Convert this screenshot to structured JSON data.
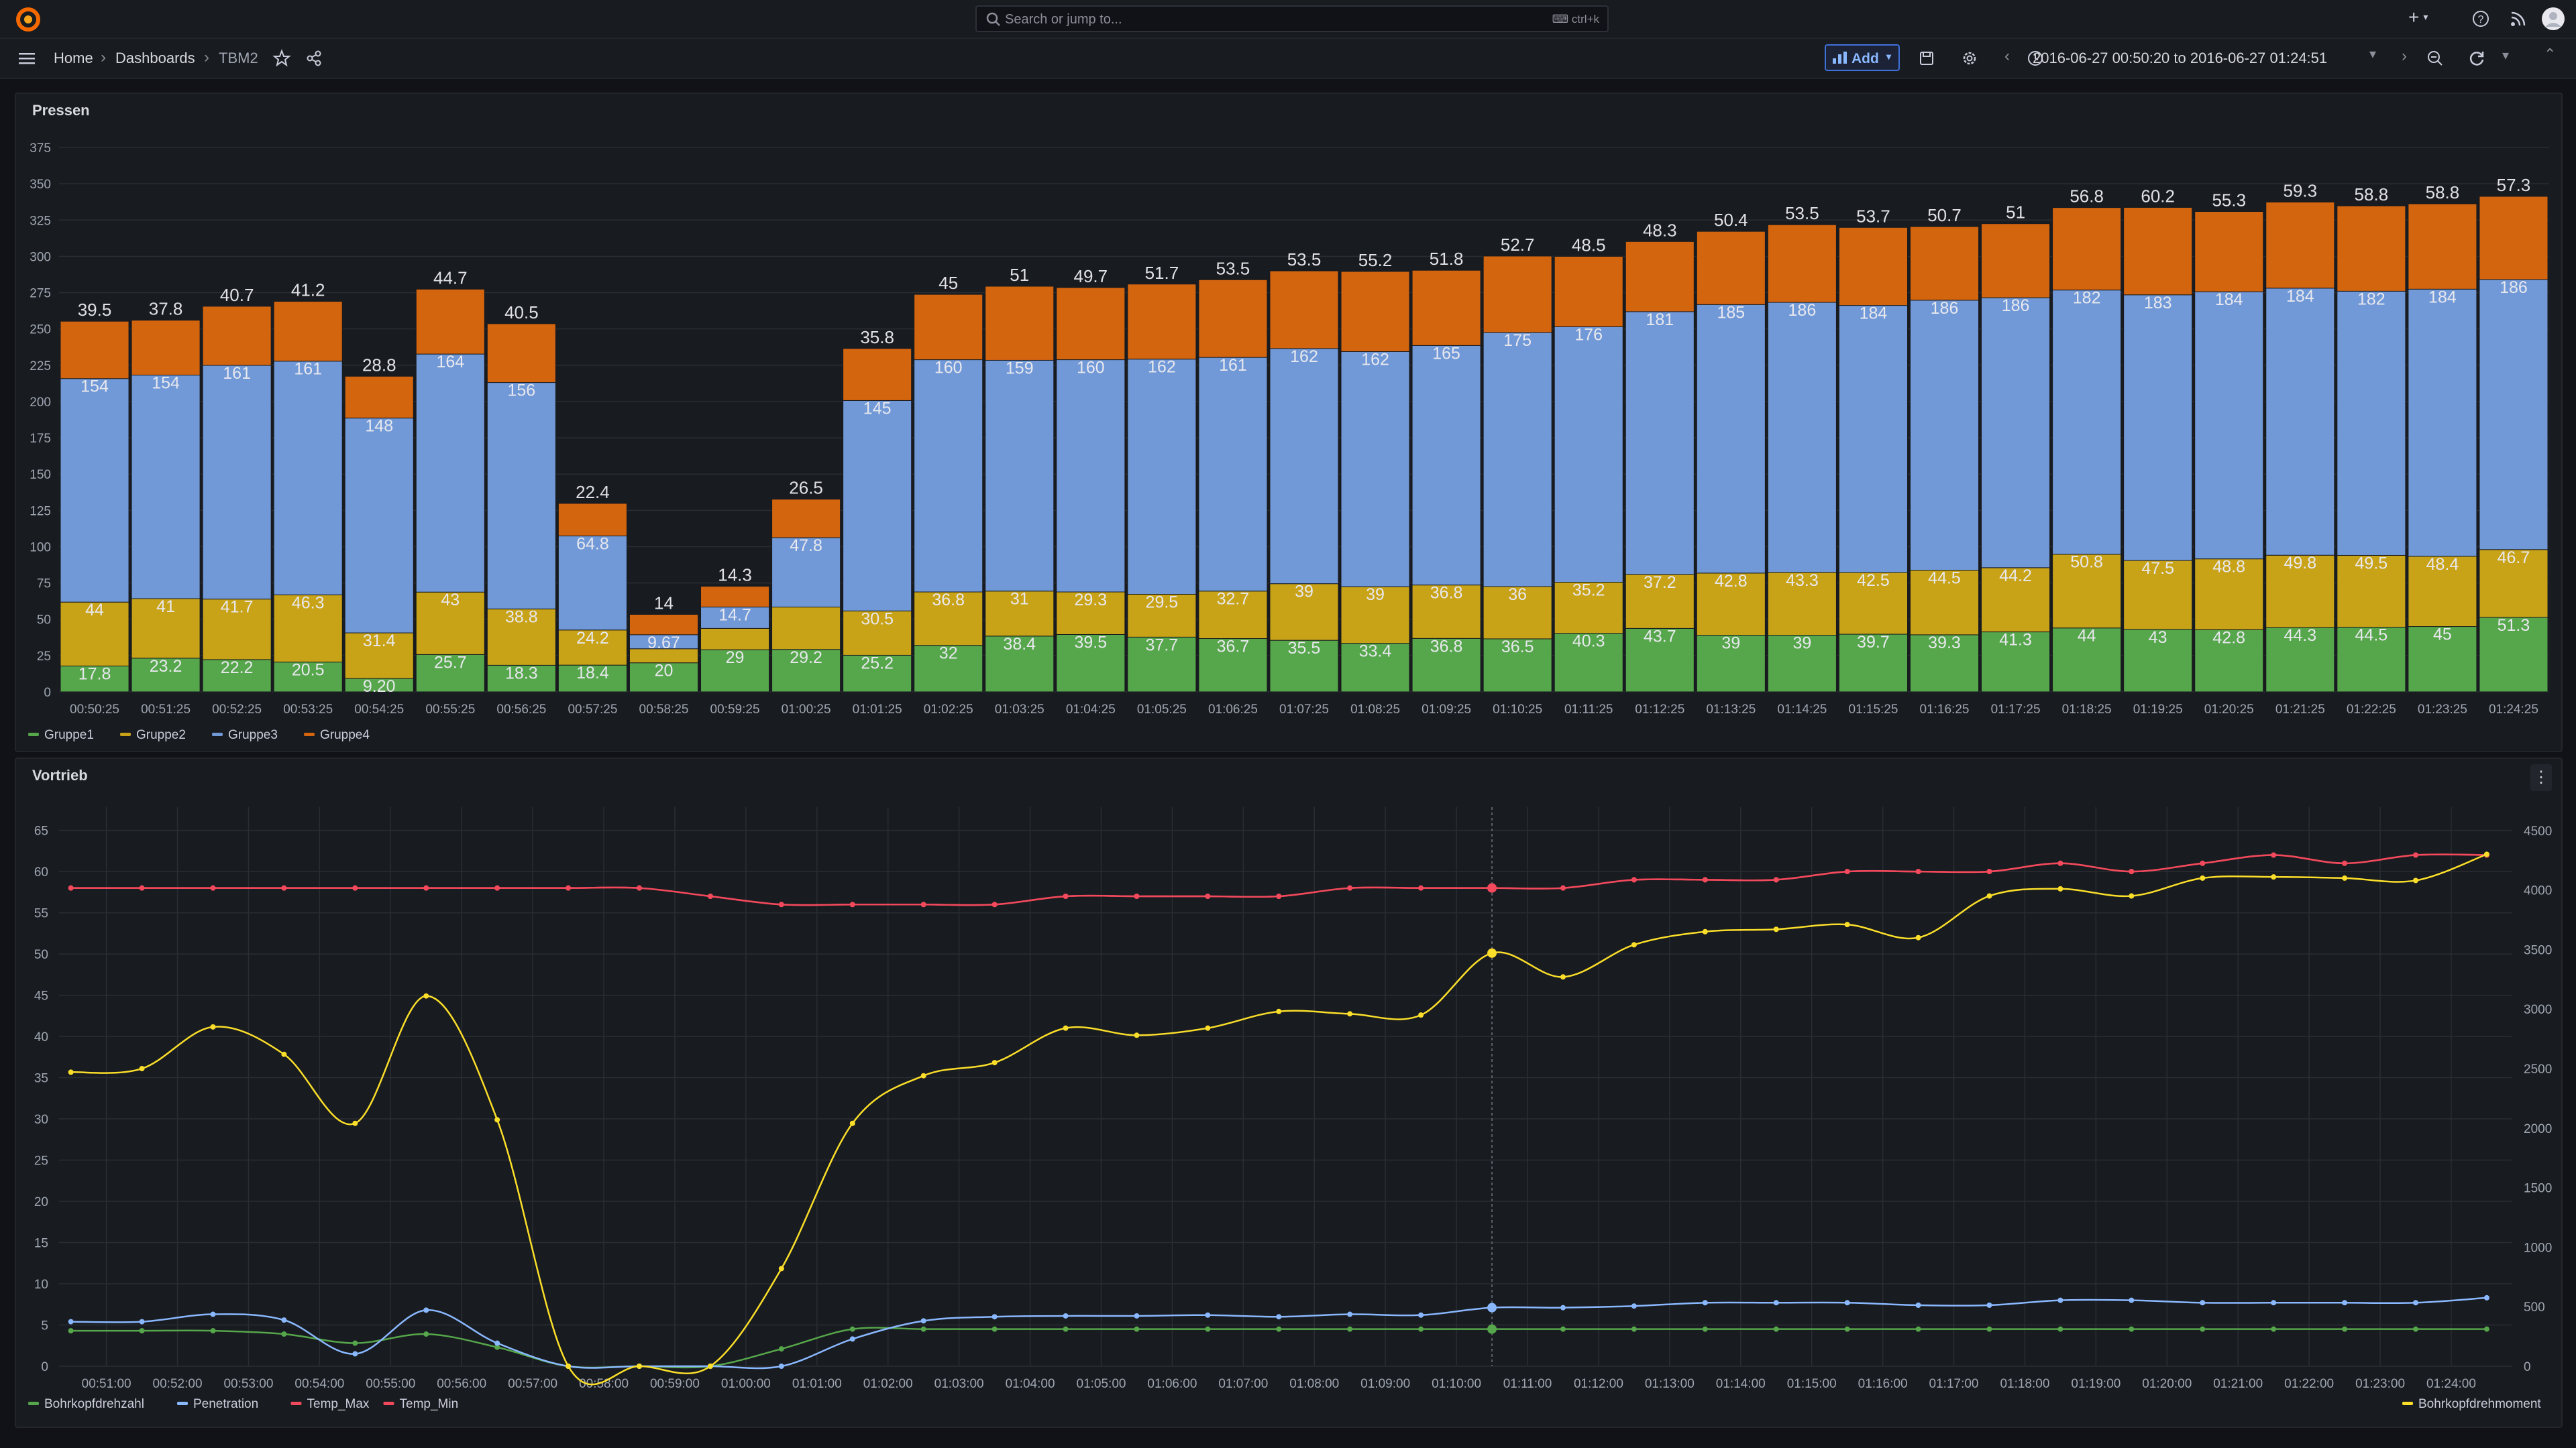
{
  "topbar": {
    "search_placeholder": "Search or jump to...",
    "search_shortcut": "ctrl+k",
    "new_label": "+"
  },
  "nav": {
    "breadcrumb": [
      "Home",
      "Dashboards",
      "TBM2"
    ],
    "add_label": "Add",
    "time_range": "2016-06-27 00:50:20 to 2016-06-27 01:24:51"
  },
  "colors": {
    "gruppe1": "#56a64b",
    "gruppe2": "#c9a317",
    "gruppe3": "#7199d7",
    "gruppe4": "#d4650f",
    "bohrkopfdrehzahl": "#56a64b",
    "penetration": "#8ab8ff",
    "temp_max": "#f2495c",
    "temp_min": "#f2495c",
    "bohrkopfdrehmoment": "#fade2a"
  },
  "panels": {
    "pressen_title": "Pressen",
    "vortrieb_title": "Vortrieb"
  },
  "chart_data": [
    {
      "type": "bar",
      "stacked": true,
      "title": "Pressen",
      "categories": [
        "00:50:25",
        "00:51:25",
        "00:52:25",
        "00:53:25",
        "00:54:25",
        "00:55:25",
        "00:56:25",
        "00:57:25",
        "00:58:25",
        "00:59:25",
        "01:00:25",
        "01:01:25",
        "01:02:25",
        "01:03:25",
        "01:04:25",
        "01:05:25",
        "01:06:25",
        "01:07:25",
        "01:08:25",
        "01:09:25",
        "01:10:25",
        "01:11:25",
        "01:12:25",
        "01:13:25",
        "01:14:25",
        "01:15:25",
        "01:16:25",
        "01:17:25",
        "01:18:25",
        "01:19:25",
        "01:20:25",
        "01:21:25",
        "01:22:25",
        "01:23:25",
        "01:24:25"
      ],
      "series": [
        {
          "name": "Gruppe1",
          "values": [
            17.8,
            23.2,
            22.2,
            20.5,
            9.2,
            25.7,
            18.3,
            18.4,
            20,
            29,
            29.2,
            25.2,
            32,
            38.4,
            39.5,
            37.7,
            36.7,
            35.5,
            33.4,
            36.8,
            36.5,
            40.3,
            43.7,
            39,
            39,
            39.7,
            39.3,
            41.3,
            44,
            43,
            42.8,
            44.3,
            44.5,
            45,
            51.3
          ],
          "labels": [
            "17.8",
            "23.2",
            "22.2",
            "20.5",
            "9.20",
            "25.7",
            "18.3",
            "18.4",
            "20",
            "29",
            "29.2",
            "25.2",
            "32",
            "38.4",
            "39.5",
            "37.7",
            "36.7",
            "35.5",
            "33.4",
            "36.8",
            "36.5",
            "40.3",
            "43.7",
            "39",
            "39",
            "39.7",
            "39.3",
            "41.3",
            "44",
            "43",
            "42.8",
            "44.3",
            "44.5",
            "45",
            "51.3"
          ]
        },
        {
          "name": "Gruppe2",
          "values": [
            44,
            41,
            41.7,
            46.3,
            31.4,
            43,
            38.8,
            24.2,
            9.67,
            14.7,
            29.2,
            30.5,
            36.8,
            31,
            29.3,
            29.5,
            32.7,
            39,
            39,
            36.8,
            36,
            35.2,
            37.2,
            42.8,
            43.3,
            42.5,
            44.5,
            44.2,
            50.8,
            47.5,
            48.8,
            49.8,
            49.5,
            48.4,
            46.7
          ],
          "labels": [
            "44",
            "41",
            "41.7",
            "46.3",
            "31.4",
            "43",
            "38.8",
            "24.2",
            "",
            "",
            "",
            "30.5",
            "36.8",
            "31",
            "29.3",
            "29.5",
            "32.7",
            "39",
            "39",
            "36.8",
            "36",
            "35.2",
            "37.2",
            "42.8",
            "43.3",
            "42.5",
            "44.5",
            "44.2",
            "50.8",
            "47.5",
            "48.8",
            "49.8",
            "49.5",
            "48.4",
            "46.7"
          ]
        },
        {
          "name": "Gruppe3",
          "values": [
            154,
            154,
            161,
            161,
            148,
            164,
            156,
            64.8,
            9.67,
            14.7,
            47.8,
            145,
            160,
            159,
            160,
            162,
            161,
            162,
            162,
            165,
            175,
            176,
            181,
            185,
            186,
            184,
            186,
            186,
            182,
            183,
            184,
            184,
            182,
            184,
            186
          ],
          "labels": [
            "154",
            "154",
            "161",
            "161",
            "148",
            "164",
            "156",
            "64.8",
            "9.67",
            "14.7",
            "47.8",
            "145",
            "160",
            "159",
            "160",
            "162",
            "161",
            "162",
            "162",
            "165",
            "175",
            "176",
            "181",
            "185",
            "186",
            "184",
            "186",
            "186",
            "182",
            "183",
            "184",
            "184",
            "182",
            "184",
            "186"
          ]
        },
        {
          "name": "Gruppe4",
          "values": [
            39.5,
            37.8,
            40.7,
            41.2,
            28.8,
            44.7,
            40.5,
            22.4,
            14,
            14.3,
            26.5,
            35.8,
            45,
            51,
            49.7,
            51.7,
            53.5,
            53.5,
            55.2,
            51.8,
            52.7,
            48.5,
            48.3,
            50.4,
            53.5,
            53.7,
            50.7,
            51,
            56.8,
            60.2,
            55.3,
            59.3,
            58.8,
            58.8,
            57.3
          ],
          "labels": [
            "39.5",
            "37.8",
            "40.7",
            "41.2",
            "28.8",
            "44.7",
            "40.5",
            "22.4",
            "14",
            "14.3",
            "26.5",
            "35.8",
            "45",
            "51",
            "49.7",
            "51.7",
            "53.5",
            "53.5",
            "55.2",
            "51.8",
            "52.7",
            "48.5",
            "48.3",
            "50.4",
            "53.5",
            "53.7",
            "50.7",
            "51",
            "56.8",
            "60.2",
            "55.3",
            "59.3",
            "58.8",
            "58.8",
            "57.3"
          ]
        }
      ],
      "yticks": [
        0,
        25,
        50,
        75,
        100,
        125,
        150,
        175,
        200,
        225,
        250,
        275,
        300,
        325,
        350,
        375
      ],
      "ylim": [
        0,
        375
      ],
      "legend": [
        "Gruppe1",
        "Gruppe2",
        "Gruppe3",
        "Gruppe4"
      ],
      "legend_position": "bottom-left"
    },
    {
      "type": "line",
      "title": "Vortrieb",
      "x": [
        "00:50:30",
        "00:51:30",
        "00:52:30",
        "00:53:30",
        "00:54:30",
        "00:55:30",
        "00:56:30",
        "00:57:30",
        "00:58:30",
        "00:59:30",
        "01:00:30",
        "01:01:30",
        "01:02:30",
        "01:03:30",
        "01:04:30",
        "01:05:30",
        "01:06:30",
        "01:07:30",
        "01:08:30",
        "01:09:30",
        "01:10:30",
        "01:11:30",
        "01:12:30",
        "01:13:30",
        "01:14:30",
        "01:15:30",
        "01:16:30",
        "01:17:30",
        "01:18:30",
        "01:19:30",
        "01:20:30",
        "01:21:30",
        "01:22:30",
        "01:23:30",
        "01:24:30"
      ],
      "xticks": [
        "00:51:00",
        "00:52:00",
        "00:53:00",
        "00:54:00",
        "00:55:00",
        "00:56:00",
        "00:57:00",
        "00:58:00",
        "00:59:00",
        "01:00:00",
        "01:01:00",
        "01:02:00",
        "01:03:00",
        "01:04:00",
        "01:05:00",
        "01:06:00",
        "01:07:00",
        "01:08:00",
        "01:09:00",
        "01:10:00",
        "01:11:00",
        "01:12:00",
        "01:13:00",
        "01:14:00",
        "01:15:00",
        "01:16:00",
        "01:17:00",
        "01:18:00",
        "01:19:00",
        "01:20:00",
        "01:21:00",
        "01:22:00",
        "01:23:00",
        "01:24:00"
      ],
      "series": [
        {
          "name": "Bohrkopfdrehzahl",
          "axis": "left",
          "values": [
            4.3,
            4.3,
            4.3,
            3.9,
            2.8,
            3.9,
            2.3,
            0,
            0,
            0,
            2.1,
            4.5,
            4.5,
            4.5,
            4.5,
            4.5,
            4.5,
            4.5,
            4.5,
            4.5,
            4.5,
            4.5,
            4.5,
            4.5,
            4.5,
            4.5,
            4.5,
            4.5,
            4.5,
            4.5,
            4.5,
            4.5,
            4.5,
            4.5,
            4.5
          ]
        },
        {
          "name": "Penetration",
          "axis": "left",
          "values": [
            5.4,
            5.4,
            6.3,
            5.6,
            1.5,
            6.8,
            2.8,
            0,
            0,
            0,
            0,
            3.3,
            5.5,
            6,
            6.1,
            6.1,
            6.2,
            6,
            6.3,
            6.2,
            7.1,
            7.1,
            7.3,
            7.7,
            7.7,
            7.7,
            7.4,
            7.4,
            8,
            8,
            7.7,
            7.7,
            7.7,
            7.7,
            8.3
          ]
        },
        {
          "name": "Temp_Max",
          "axis": "left",
          "values": [
            58,
            58,
            58,
            58,
            58,
            58,
            58,
            58,
            58,
            57,
            56,
            56,
            56,
            56,
            57,
            57,
            57,
            57,
            58,
            58,
            58,
            58,
            59,
            59,
            59,
            60,
            60,
            60,
            61,
            60,
            61,
            62,
            61,
            62,
            62
          ]
        },
        {
          "name": "Temp_Min",
          "axis": "left",
          "values": [
            58,
            58,
            58,
            58,
            58,
            58,
            58,
            58,
            58,
            57,
            56,
            56,
            56,
            56,
            57,
            57,
            57,
            57,
            58,
            58,
            58,
            58,
            59,
            59,
            59,
            60,
            60,
            60,
            61,
            60,
            61,
            62,
            61,
            62,
            62
          ]
        },
        {
          "name": "Bohrkopfdrehmoment",
          "axis": "right",
          "values": [
            2470,
            2500,
            2850,
            2620,
            2040,
            3110,
            2070,
            0,
            0,
            0,
            820,
            2040,
            2440,
            2550,
            2840,
            2780,
            2840,
            2980,
            2960,
            2950,
            3470,
            3270,
            3540,
            3650,
            3670,
            3710,
            3600,
            3950,
            4010,
            3950,
            4100,
            4110,
            4100,
            4080,
            4300
          ]
        }
      ],
      "yleft_ticks": [
        0,
        5,
        10,
        15,
        20,
        25,
        30,
        35,
        40,
        45,
        50,
        55,
        60,
        65
      ],
      "yleft_lim": [
        0,
        67
      ],
      "yright_ticks": [
        0,
        500,
        1000,
        1500,
        2000,
        2500,
        3000,
        3500,
        4000,
        4500
      ],
      "yright_lim": [
        0,
        4640
      ],
      "legend_left": [
        "Bohrkopfdrehzahl",
        "Penetration",
        "Temp_Max",
        "Temp_Min"
      ],
      "legend_right": [
        "Bohrkopfdrehmoment"
      ],
      "legend_position": "bottom"
    }
  ]
}
